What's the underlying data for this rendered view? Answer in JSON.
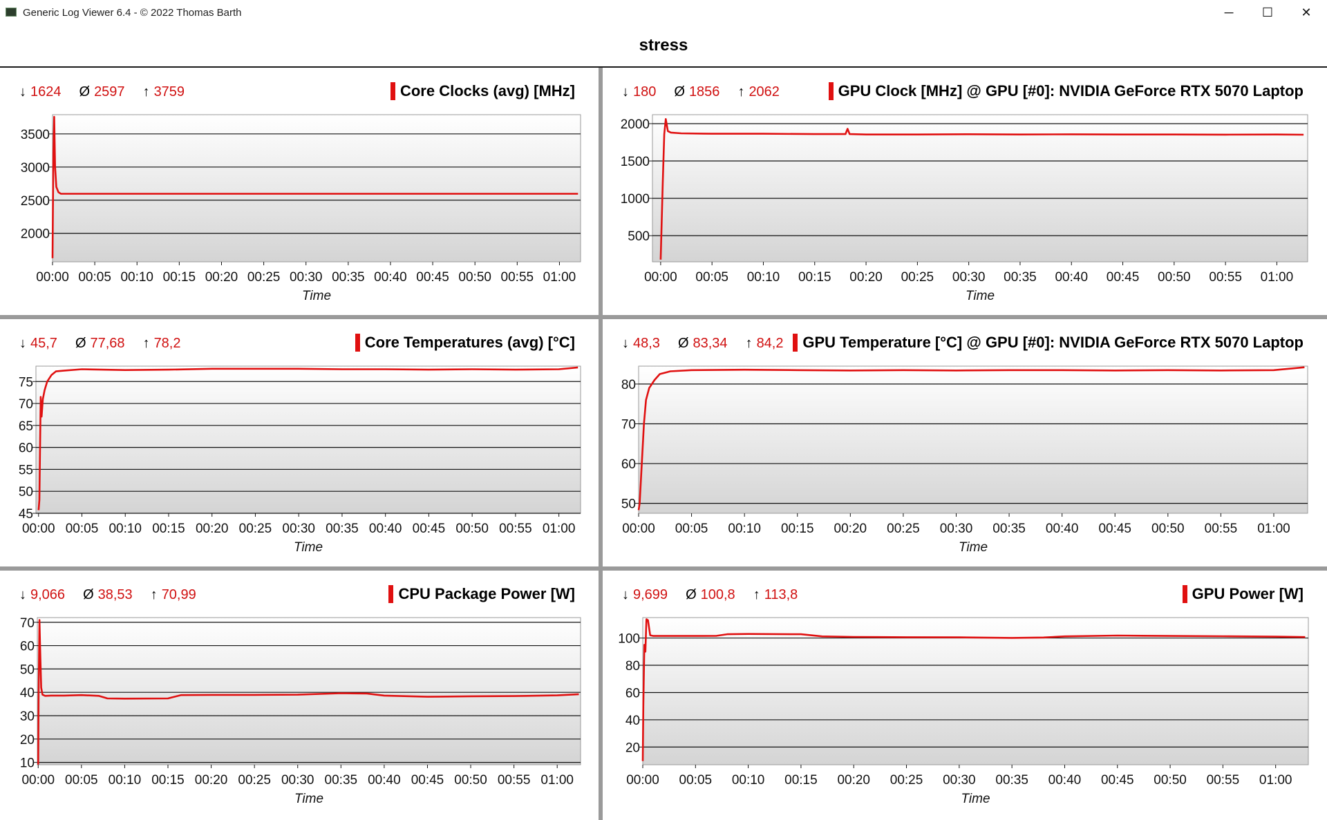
{
  "window": {
    "title": "Generic Log Viewer 6.4 - © 2022 Thomas Barth",
    "minimize_label": "─",
    "maximize_label": "☐",
    "close_label": "✕"
  },
  "document": {
    "title": "stress"
  },
  "colors": {
    "series": "#e01010",
    "stats_text": "#d01010",
    "plot_bg_top": "#ffffff",
    "plot_bg_bottom": "#d4d4d4"
  },
  "stat_symbols": {
    "min": "↓",
    "avg": "Ø",
    "max": "↑"
  },
  "chart_data": [
    {
      "type": "line",
      "title": "Core Clocks (avg) [MHz]",
      "xlabel": "Time",
      "ylabel": "",
      "stats": {
        "min": "1624",
        "avg": "2597",
        "max": "3759"
      },
      "xlim": [
        0,
        62.5
      ],
      "ylim": [
        1570,
        3790
      ],
      "yticks": [
        2000,
        2500,
        3000,
        3500
      ],
      "xtick_labels": [
        "00:00",
        "00:05",
        "00:10",
        "00:15",
        "00:20",
        "00:25",
        "00:30",
        "00:35",
        "00:40",
        "00:45",
        "00:50",
        "00:55",
        "01:00"
      ],
      "grid": "horizontal",
      "series": [
        {
          "x": [
            0,
            0.1,
            0.2,
            0.3,
            0.45,
            0.7,
            1,
            5,
            10,
            20,
            30,
            40,
            50,
            62.2
          ],
          "y": [
            1624,
            3200,
            3759,
            3000,
            2700,
            2620,
            2597,
            2597,
            2597,
            2597,
            2597,
            2597,
            2597,
            2597
          ]
        }
      ]
    },
    {
      "type": "line",
      "title": "GPU Clock [MHz] @ GPU [#0]: NVIDIA GeForce RTX 5070 Laptop",
      "xlabel": "Time",
      "ylabel": "",
      "stats": {
        "min": "180",
        "avg": "1856",
        "max": "2062"
      },
      "xlim": [
        -0.8,
        63
      ],
      "ylim": [
        150,
        2120
      ],
      "yticks": [
        500,
        1000,
        1500,
        2000
      ],
      "xtick_labels": [
        "00:00",
        "00:05",
        "00:10",
        "00:15",
        "00:20",
        "00:25",
        "00:30",
        "00:35",
        "00:40",
        "00:45",
        "00:50",
        "00:55",
        "01:00"
      ],
      "grid": "horizontal",
      "series": [
        {
          "x": [
            0,
            0.2,
            0.35,
            0.5,
            0.7,
            1,
            2,
            5,
            10,
            15,
            18,
            18.2,
            18.4,
            20,
            25,
            30,
            35,
            40,
            45,
            50,
            55,
            60,
            62.6
          ],
          "y": [
            180,
            1200,
            1860,
            2062,
            1900,
            1880,
            1870,
            1865,
            1865,
            1860,
            1860,
            1930,
            1860,
            1855,
            1855,
            1858,
            1855,
            1857,
            1855,
            1855,
            1853,
            1855,
            1852
          ]
        }
      ]
    },
    {
      "type": "line",
      "title": "Core Temperatures (avg) [°C]",
      "xlabel": "Time",
      "ylabel": "",
      "stats": {
        "min": "45,7",
        "avg": "77,68",
        "max": "78,2"
      },
      "xlim": [
        -0.3,
        62.5
      ],
      "ylim": [
        45,
        78.5
      ],
      "yticks": [
        45,
        50,
        55,
        60,
        65,
        70,
        75
      ],
      "xtick_labels": [
        "00:00",
        "00:05",
        "00:10",
        "00:15",
        "00:20",
        "00:25",
        "00:30",
        "00:35",
        "00:40",
        "00:45",
        "00:50",
        "00:55",
        "01:00"
      ],
      "grid": "horizontal",
      "series": [
        {
          "x": [
            0,
            0.1,
            0.25,
            0.35,
            0.5,
            0.7,
            1,
            1.5,
            2,
            3,
            5,
            10,
            15,
            20,
            25,
            30,
            35,
            40,
            45,
            50,
            55,
            60,
            62.2
          ],
          "y": [
            45.7,
            48,
            71.5,
            67,
            71,
            73,
            75,
            76.5,
            77.3,
            77.5,
            77.8,
            77.6,
            77.7,
            77.9,
            77.9,
            77.9,
            77.8,
            77.8,
            77.7,
            77.8,
            77.7,
            77.8,
            78.2
          ]
        }
      ]
    },
    {
      "type": "line",
      "title": "GPU Temperature [°C] @ GPU [#0]: NVIDIA GeForce RTX 5070 Laptop",
      "xlabel": "Time",
      "ylabel": "",
      "stats": {
        "min": "48,3",
        "avg": "83,34",
        "max": "84,2"
      },
      "xlim": [
        0,
        63.2
      ],
      "ylim": [
        47.5,
        84.5
      ],
      "yticks": [
        50,
        60,
        70,
        80
      ],
      "xtick_labels": [
        "00:00",
        "00:05",
        "00:10",
        "00:15",
        "00:20",
        "00:25",
        "00:30",
        "00:35",
        "00:40",
        "00:45",
        "00:50",
        "00:55",
        "01:00"
      ],
      "grid": "horizontal",
      "series": [
        {
          "x": [
            0,
            0.1,
            0.3,
            0.5,
            0.7,
            1,
            1.5,
            2,
            3,
            5,
            10,
            15,
            20,
            25,
            30,
            35,
            40,
            45,
            50,
            55,
            60,
            62.9
          ],
          "y": [
            48.3,
            50,
            60,
            70,
            76,
            79,
            81,
            82.5,
            83.2,
            83.5,
            83.6,
            83.5,
            83.4,
            83.5,
            83.4,
            83.5,
            83.5,
            83.4,
            83.5,
            83.4,
            83.5,
            84.2
          ]
        }
      ]
    },
    {
      "type": "line",
      "title": "CPU Package Power [W]",
      "xlabel": "Time",
      "ylabel": "",
      "stats": {
        "min": "9,066",
        "avg": "38,53",
        "max": "70,99"
      },
      "xlim": [
        -0.1,
        62.7
      ],
      "ylim": [
        9,
        72
      ],
      "yticks": [
        10,
        20,
        30,
        40,
        50,
        60,
        70
      ],
      "xtick_labels": [
        "00:00",
        "00:05",
        "00:10",
        "00:15",
        "00:20",
        "00:25",
        "00:30",
        "00:35",
        "00:40",
        "00:45",
        "00:50",
        "00:55",
        "01:00"
      ],
      "grid": "horizontal",
      "series": [
        {
          "x": [
            0,
            0.05,
            0.15,
            0.25,
            0.35,
            0.5,
            0.8,
            1.5,
            3,
            5,
            7,
            8,
            10,
            15,
            16.5,
            20,
            25,
            30,
            35,
            38,
            40,
            45,
            50,
            55,
            60,
            62.5
          ],
          "y": [
            9.066,
            40,
            70.99,
            55,
            42,
            39,
            38.5,
            38.6,
            38.6,
            38.8,
            38.5,
            37.4,
            37.3,
            37.4,
            38.8,
            38.9,
            38.9,
            39.0,
            39.6,
            39.5,
            38.6,
            38.1,
            38.3,
            38.4,
            38.7,
            39.2
          ]
        }
      ]
    },
    {
      "type": "line",
      "title": "GPU Power [W]",
      "xlabel": "Time",
      "ylabel": "",
      "stats": {
        "min": "9,699",
        "avg": "100,8",
        "max": "113,8"
      },
      "xlim": [
        0,
        63.1
      ],
      "ylim": [
        7,
        115
      ],
      "yticks": [
        20,
        40,
        60,
        80,
        100
      ],
      "xtick_labels": [
        "00:00",
        "00:05",
        "00:10",
        "00:15",
        "00:20",
        "00:25",
        "00:30",
        "00:35",
        "00:40",
        "00:45",
        "00:50",
        "00:55",
        "01:00"
      ],
      "grid": "horizontal",
      "series": [
        {
          "x": [
            0,
            0.05,
            0.15,
            0.25,
            0.35,
            0.5,
            0.7,
            1,
            2,
            5,
            7,
            8,
            10,
            15,
            17,
            20,
            25,
            30,
            35,
            38,
            40,
            45,
            50,
            55,
            60,
            62.8
          ],
          "y": [
            9.699,
            50,
            95,
            90,
            113.8,
            113,
            102,
            101.5,
            101.5,
            101.5,
            101.6,
            102.8,
            103,
            102.8,
            101.2,
            100.8,
            100.6,
            100.5,
            100.1,
            100.4,
            101.2,
            101.8,
            101.5,
            101.3,
            101.0,
            100.7
          ]
        }
      ]
    }
  ]
}
